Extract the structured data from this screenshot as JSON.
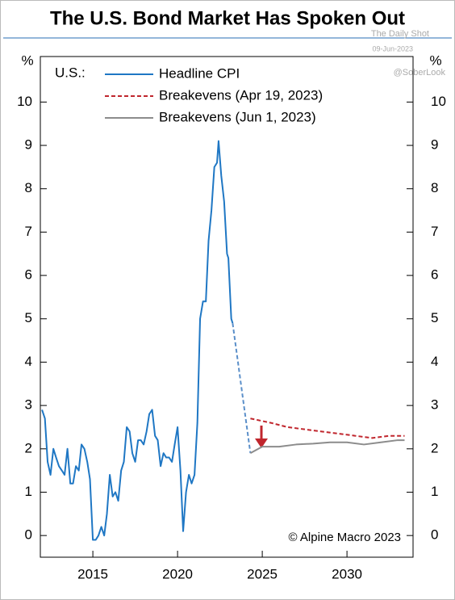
{
  "chart_data": {
    "type": "line",
    "title": "The U.S. Bond Market Has Spoken Out",
    "watermarks": [
      "The Daily Shot",
      "09-Jun-2023",
      "@SoberLook"
    ],
    "region_label": "U.S.:",
    "annotation": "© Alpine Macro 2023",
    "y_unit_label": "%",
    "xlim": [
      2011.9,
      2033.9
    ],
    "ylim": [
      -0.5,
      11.05
    ],
    "xticks": [
      2015,
      2020,
      2025,
      2030
    ],
    "yticks": [
      0,
      1,
      2,
      3,
      4,
      5,
      6,
      7,
      8,
      9,
      10
    ],
    "series": [
      {
        "name": "Headline CPI",
        "color": "#1f77c4",
        "style": "solid",
        "x": [
          2012.0,
          2012.17,
          2012.33,
          2012.5,
          2012.67,
          2012.83,
          2013.0,
          2013.17,
          2013.33,
          2013.5,
          2013.67,
          2013.83,
          2014.0,
          2014.17,
          2014.33,
          2014.5,
          2014.67,
          2014.83,
          2015.0,
          2015.17,
          2015.33,
          2015.5,
          2015.67,
          2015.83,
          2016.0,
          2016.17,
          2016.33,
          2016.5,
          2016.67,
          2016.83,
          2017.0,
          2017.17,
          2017.33,
          2017.5,
          2017.67,
          2017.83,
          2018.0,
          2018.17,
          2018.33,
          2018.5,
          2018.67,
          2018.83,
          2019.0,
          2019.17,
          2019.33,
          2019.5,
          2019.67,
          2019.83,
          2020.0,
          2020.17,
          2020.33,
          2020.5,
          2020.67,
          2020.83,
          2021.0,
          2021.17,
          2021.33,
          2021.5,
          2021.67,
          2021.83,
          2022.0,
          2022.17,
          2022.33,
          2022.42,
          2022.58,
          2022.75,
          2022.92,
          2023.0,
          2023.17,
          2023.25
        ],
        "values": [
          2.9,
          2.7,
          1.7,
          1.4,
          2.0,
          1.8,
          1.6,
          1.5,
          1.4,
          2.0,
          1.2,
          1.2,
          1.6,
          1.5,
          2.1,
          2.0,
          1.7,
          1.3,
          -0.1,
          -0.1,
          0.0,
          0.2,
          0.0,
          0.5,
          1.4,
          0.9,
          1.0,
          0.8,
          1.5,
          1.7,
          2.5,
          2.4,
          1.9,
          1.7,
          2.2,
          2.2,
          2.1,
          2.4,
          2.8,
          2.9,
          2.3,
          2.2,
          1.6,
          1.9,
          1.8,
          1.8,
          1.7,
          2.1,
          2.5,
          1.5,
          0.1,
          1.0,
          1.4,
          1.2,
          1.4,
          2.6,
          5.0,
          5.4,
          5.4,
          6.8,
          7.5,
          8.5,
          8.6,
          9.1,
          8.3,
          7.7,
          6.5,
          6.4,
          5.0,
          4.9
        ]
      },
      {
        "color": "#5b8fc9",
        "style": "dashed",
        "x": [
          2023.25,
          2024.3
        ],
        "values": [
          4.9,
          1.9
        ]
      },
      {
        "name": "Breakevens (Apr 19, 2023)",
        "color": "#c0262d",
        "style": "dashed",
        "x": [
          2024.3,
          2025.5,
          2026.5,
          2027.5,
          2028.5,
          2029.5,
          2030.5,
          2031.5,
          2032.5,
          2033.4
        ],
        "values": [
          2.7,
          2.6,
          2.5,
          2.45,
          2.4,
          2.35,
          2.3,
          2.25,
          2.3,
          2.3
        ]
      },
      {
        "name": "Breakevens (Jun 1, 2023)",
        "color": "#8c8c8c",
        "style": "solid",
        "x": [
          2024.3,
          2025.0,
          2026.0,
          2027.0,
          2028.0,
          2029.0,
          2030.0,
          2031.0,
          2032.0,
          2033.0,
          2033.4
        ],
        "values": [
          1.9,
          2.05,
          2.05,
          2.1,
          2.12,
          2.15,
          2.15,
          2.1,
          2.15,
          2.2,
          2.2
        ]
      }
    ]
  }
}
